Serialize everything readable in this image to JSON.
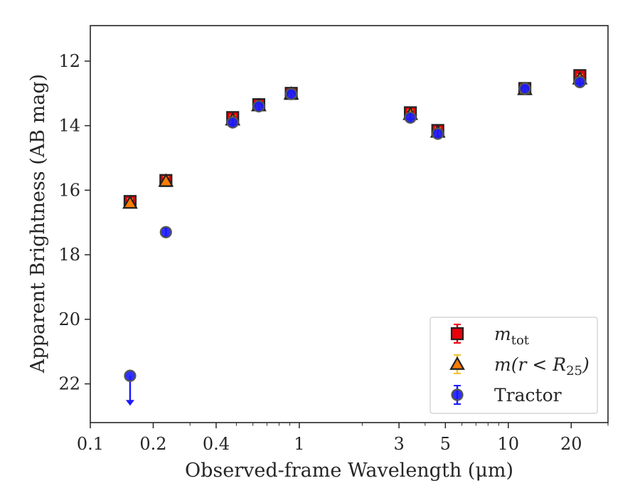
{
  "chart_data": {
    "type": "scatter",
    "title": "",
    "xlabel": "Observed-frame Wavelength (μm)",
    "ylabel": "Apparent Brightness (AB mag)",
    "xscale": "log",
    "xlim": [
      0.1,
      30
    ],
    "ylim": [
      23.2,
      10.9
    ],
    "y_inverted": true,
    "xticks": [
      0.1,
      0.2,
      0.4,
      1,
      3,
      5,
      10,
      20
    ],
    "xtick_labels": [
      "0.1",
      "0.2",
      "0.4",
      "1",
      "3",
      "5",
      "10",
      "20"
    ],
    "yticks": [
      12,
      14,
      16,
      18,
      20,
      22
    ],
    "ytick_labels": [
      "12",
      "14",
      "16",
      "18",
      "20",
      "22"
    ],
    "grid": false,
    "legend_position": "bottom-right",
    "series": [
      {
        "key": "mtot",
        "legend_base": "m",
        "legend_sub": "tot",
        "marker": "square",
        "color": "#e8000b",
        "errorbar_color": "#e8000b",
        "points": [
          {
            "x": 0.155,
            "y": 16.35
          },
          {
            "x": 0.23,
            "y": 15.7
          },
          {
            "x": 0.48,
            "y": 13.75
          },
          {
            "x": 0.64,
            "y": 13.35
          },
          {
            "x": 0.915,
            "y": 13.0
          },
          {
            "x": 3.4,
            "y": 13.6
          },
          {
            "x": 4.6,
            "y": 14.15
          },
          {
            "x": 12.0,
            "y": 12.85
          },
          {
            "x": 22.0,
            "y": 12.45
          }
        ]
      },
      {
        "key": "mr25",
        "legend_base": "m(r < R",
        "legend_sub": "25",
        "legend_tail": ")",
        "marker": "triangle",
        "color": "#ff7c00",
        "errorbar_color": "#f1c232",
        "points": [
          {
            "x": 0.155,
            "y": 16.4
          },
          {
            "x": 0.23,
            "y": 15.72
          },
          {
            "x": 0.48,
            "y": 13.82
          },
          {
            "x": 0.64,
            "y": 13.38
          },
          {
            "x": 0.915,
            "y": 13.02
          },
          {
            "x": 3.4,
            "y": 13.65
          },
          {
            "x": 4.6,
            "y": 14.2
          },
          {
            "x": 12.0,
            "y": 12.88
          },
          {
            "x": 22.0,
            "y": 12.55
          }
        ]
      },
      {
        "key": "tractor",
        "legend_base": "Tractor",
        "marker": "circle",
        "color": "#1a1aff",
        "errorbar_color": "#1a1aff",
        "points": [
          {
            "x": 0.155,
            "y": 21.75,
            "upper_limit": true
          },
          {
            "x": 0.23,
            "y": 17.3
          },
          {
            "x": 0.48,
            "y": 13.9
          },
          {
            "x": 0.64,
            "y": 13.4
          },
          {
            "x": 0.915,
            "y": 13.02
          },
          {
            "x": 3.4,
            "y": 13.75
          },
          {
            "x": 4.6,
            "y": 14.25
          },
          {
            "x": 12.0,
            "y": 12.85
          },
          {
            "x": 22.0,
            "y": 12.65
          }
        ]
      }
    ]
  }
}
